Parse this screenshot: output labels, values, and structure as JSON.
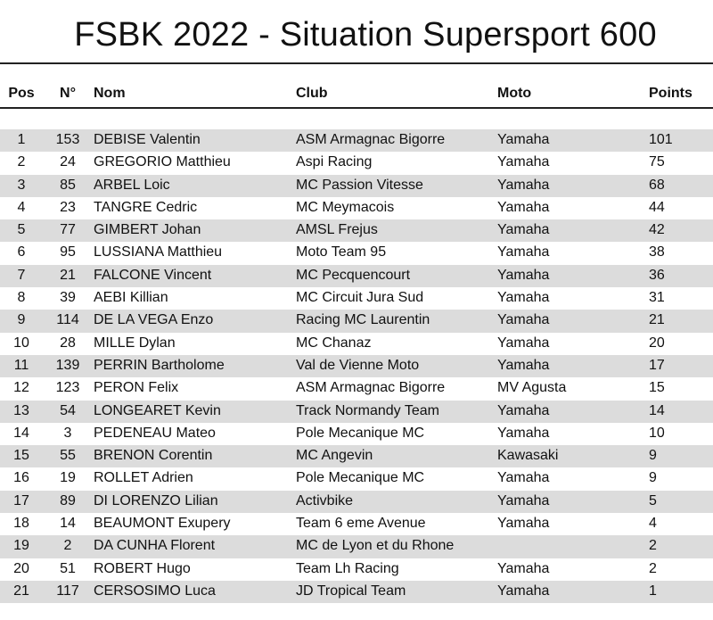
{
  "title": "FSBK 2022 - Situation Supersport 600",
  "headers": {
    "pos": "Pos",
    "num": "N°",
    "nom": "Nom",
    "club": "Club",
    "moto": "Moto",
    "points": "Points"
  },
  "rows": [
    {
      "pos": "1",
      "num": "153",
      "nom": "DEBISE Valentin",
      "club": "ASM Armagnac Bigorre",
      "moto": "Yamaha",
      "points": "101"
    },
    {
      "pos": "2",
      "num": "24",
      "nom": "GREGORIO Matthieu",
      "club": "Aspi Racing",
      "moto": "Yamaha",
      "points": "75"
    },
    {
      "pos": "3",
      "num": "85",
      "nom": "ARBEL Loic",
      "club": "MC Passion Vitesse",
      "moto": "Yamaha",
      "points": "68"
    },
    {
      "pos": "4",
      "num": "23",
      "nom": "TANGRE Cedric",
      "club": "MC Meymacois",
      "moto": "Yamaha",
      "points": "44"
    },
    {
      "pos": "5",
      "num": "77",
      "nom": "GIMBERT Johan",
      "club": "AMSL Frejus",
      "moto": "Yamaha",
      "points": "42"
    },
    {
      "pos": "6",
      "num": "95",
      "nom": "LUSSIANA Matthieu",
      "club": "Moto Team 95",
      "moto": "Yamaha",
      "points": "38"
    },
    {
      "pos": "7",
      "num": "21",
      "nom": "FALCONE Vincent",
      "club": "MC Pecquencourt",
      "moto": "Yamaha",
      "points": "36"
    },
    {
      "pos": "8",
      "num": "39",
      "nom": "AEBI Killian",
      "club": "MC Circuit Jura Sud",
      "moto": "Yamaha",
      "points": "31"
    },
    {
      "pos": "9",
      "num": "114",
      "nom": "DE LA VEGA Enzo",
      "club": "Racing MC Laurentin",
      "moto": "Yamaha",
      "points": "21"
    },
    {
      "pos": "10",
      "num": "28",
      "nom": "MILLE Dylan",
      "club": "MC Chanaz",
      "moto": "Yamaha",
      "points": "20"
    },
    {
      "pos": "11",
      "num": "139",
      "nom": "PERRIN Bartholome",
      "club": "Val de Vienne Moto",
      "moto": "Yamaha",
      "points": "17"
    },
    {
      "pos": "12",
      "num": "123",
      "nom": "PERON Felix",
      "club": "ASM Armagnac Bigorre",
      "moto": "MV Agusta",
      "points": "15"
    },
    {
      "pos": "13",
      "num": "54",
      "nom": "LONGEARET Kevin",
      "club": "Track Normandy Team",
      "moto": "Yamaha",
      "points": "14"
    },
    {
      "pos": "14",
      "num": "3",
      "nom": "PEDENEAU Mateo",
      "club": "Pole Mecanique MC",
      "moto": "Yamaha",
      "points": "10"
    },
    {
      "pos": "15",
      "num": "55",
      "nom": "BRENON Corentin",
      "club": "MC Angevin",
      "moto": "Kawasaki",
      "points": "9"
    },
    {
      "pos": "16",
      "num": "19",
      "nom": "ROLLET Adrien",
      "club": "Pole Mecanique MC",
      "moto": "Yamaha",
      "points": "9"
    },
    {
      "pos": "17",
      "num": "89",
      "nom": "DI LORENZO Lilian",
      "club": "Activbike",
      "moto": "Yamaha",
      "points": "5"
    },
    {
      "pos": "18",
      "num": "14",
      "nom": "BEAUMONT Exupery",
      "club": "Team 6 eme Avenue",
      "moto": "Yamaha",
      "points": "4"
    },
    {
      "pos": "19",
      "num": "2",
      "nom": "DA CUNHA Florent",
      "club": "MC de Lyon et du Rhone",
      "moto": "",
      "points": "2"
    },
    {
      "pos": "20",
      "num": "51",
      "nom": "ROBERT Hugo",
      "club": "Team Lh Racing",
      "moto": "Yamaha",
      "points": "2"
    },
    {
      "pos": "21",
      "num": "117",
      "nom": "CERSOSIMO Luca",
      "club": "JD Tropical Team",
      "moto": "Yamaha",
      "points": "1"
    }
  ],
  "colors": {
    "stripe": "#dcdcdc",
    "rule": "#222222"
  }
}
